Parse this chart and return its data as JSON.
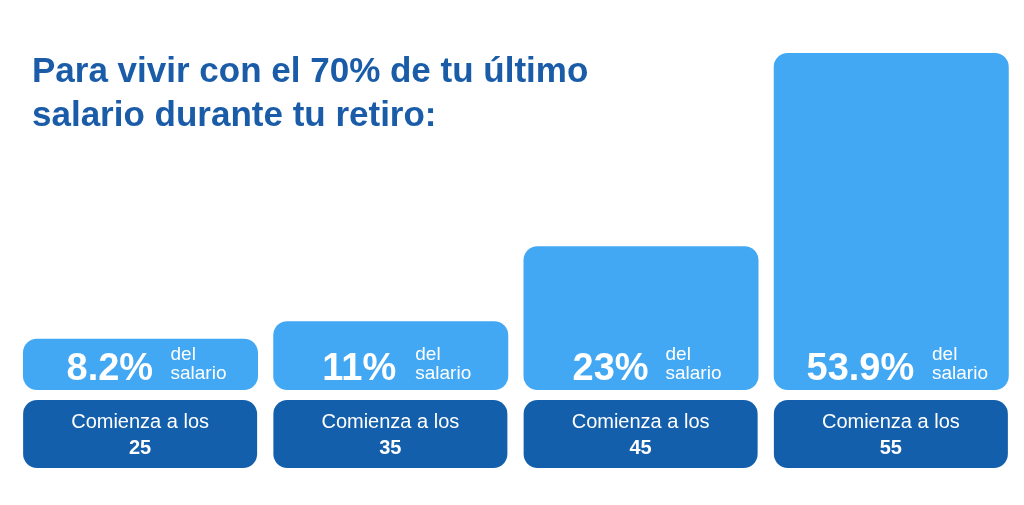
{
  "chart_data": {
    "type": "bar",
    "title": "Para vivir con el 70% de tu último salario durante tu retiro:",
    "categories": [
      "Comienza a los 25",
      "Comienza a los 35",
      "Comienza a los 45",
      "Comienza a los 55"
    ],
    "values": [
      8.2,
      11,
      23,
      53.9
    ],
    "color": "#42a8f4",
    "value_labels": [
      "8.2% del salario",
      "11% del salario",
      "23% del salario",
      "53.9% del salario"
    ]
  }
}
